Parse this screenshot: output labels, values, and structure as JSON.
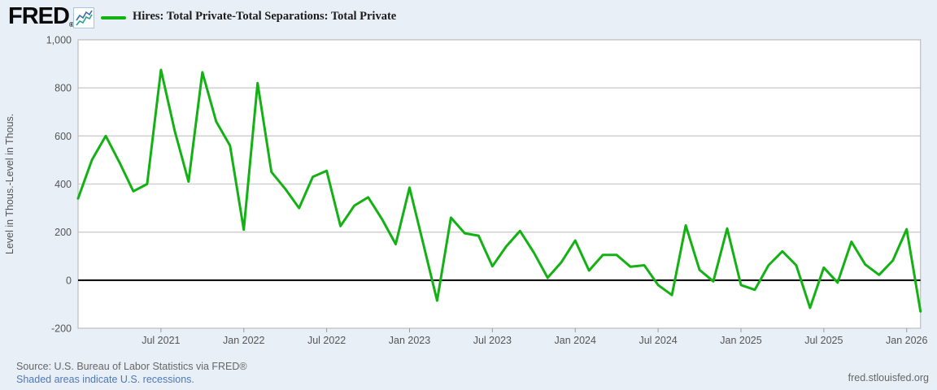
{
  "header": {
    "logo_text": "FRED",
    "logo_mark": "®"
  },
  "legend": {
    "label": "Hires: Total Private-Total Separations: Total Private",
    "swatch_color": "#13b113"
  },
  "footer": {
    "source": "Source: U.S. Bureau of Labor Statistics via FRED®",
    "recession_note": "Shaded areas indicate U.S. recessions.",
    "site": "fred.stlouisfed.org"
  },
  "colors": {
    "page_bg": "#e8eff7",
    "plot_bg": "#ffffff",
    "grid": "#cccccc",
    "border": "#bdbdbd",
    "zero_line": "#000000",
    "series": "#13b113",
    "axis_text": "#555555",
    "tick_mark": "#999999",
    "link_blue": "#4e79b8"
  },
  "chart_data": {
    "type": "line",
    "title": "",
    "series_name": "Hires: Total Private-Total Separations: Total Private",
    "ylabel": "Level in Thous.-Level in Thous.",
    "frequency": "monthly",
    "start_month": "2021-01",
    "end_month": "2026-02",
    "values": [
      340,
      500,
      600,
      490,
      370,
      400,
      875,
      620,
      410,
      865,
      660,
      560,
      210,
      820,
      450,
      380,
      300,
      430,
      455,
      225,
      310,
      345,
      255,
      150,
      385,
      150,
      -85,
      260,
      195,
      185,
      58,
      140,
      205,
      115,
      10,
      75,
      165,
      40,
      105,
      105,
      56,
      62,
      -20,
      -62,
      228,
      43,
      -5,
      215,
      -20,
      -40,
      62,
      120,
      62,
      -115,
      52,
      -10,
      160,
      65,
      22,
      82,
      212,
      -130
    ],
    "ylim": [
      -200,
      1000
    ],
    "y_ticks": [
      {
        "value": 1000,
        "label": "1,000"
      },
      {
        "value": 800,
        "label": "800"
      },
      {
        "value": 600,
        "label": "600"
      },
      {
        "value": 400,
        "label": "400"
      },
      {
        "value": 200,
        "label": "200"
      },
      {
        "value": 0,
        "label": "0"
      },
      {
        "value": -200,
        "label": "-200"
      }
    ],
    "x_tick_labels": [
      "Jul 2021",
      "Jan 2022",
      "Jul 2022",
      "Jan 2023",
      "Jul 2023",
      "Jan 2024",
      "Jul 2024",
      "Jan 2025",
      "Jul 2025",
      "Jan 2026"
    ],
    "x_tick_month_indices": [
      6,
      12,
      18,
      24,
      30,
      36,
      42,
      48,
      54,
      60
    ],
    "grid": "horizontal",
    "legend_position": "top-left",
    "zero_line": true
  }
}
